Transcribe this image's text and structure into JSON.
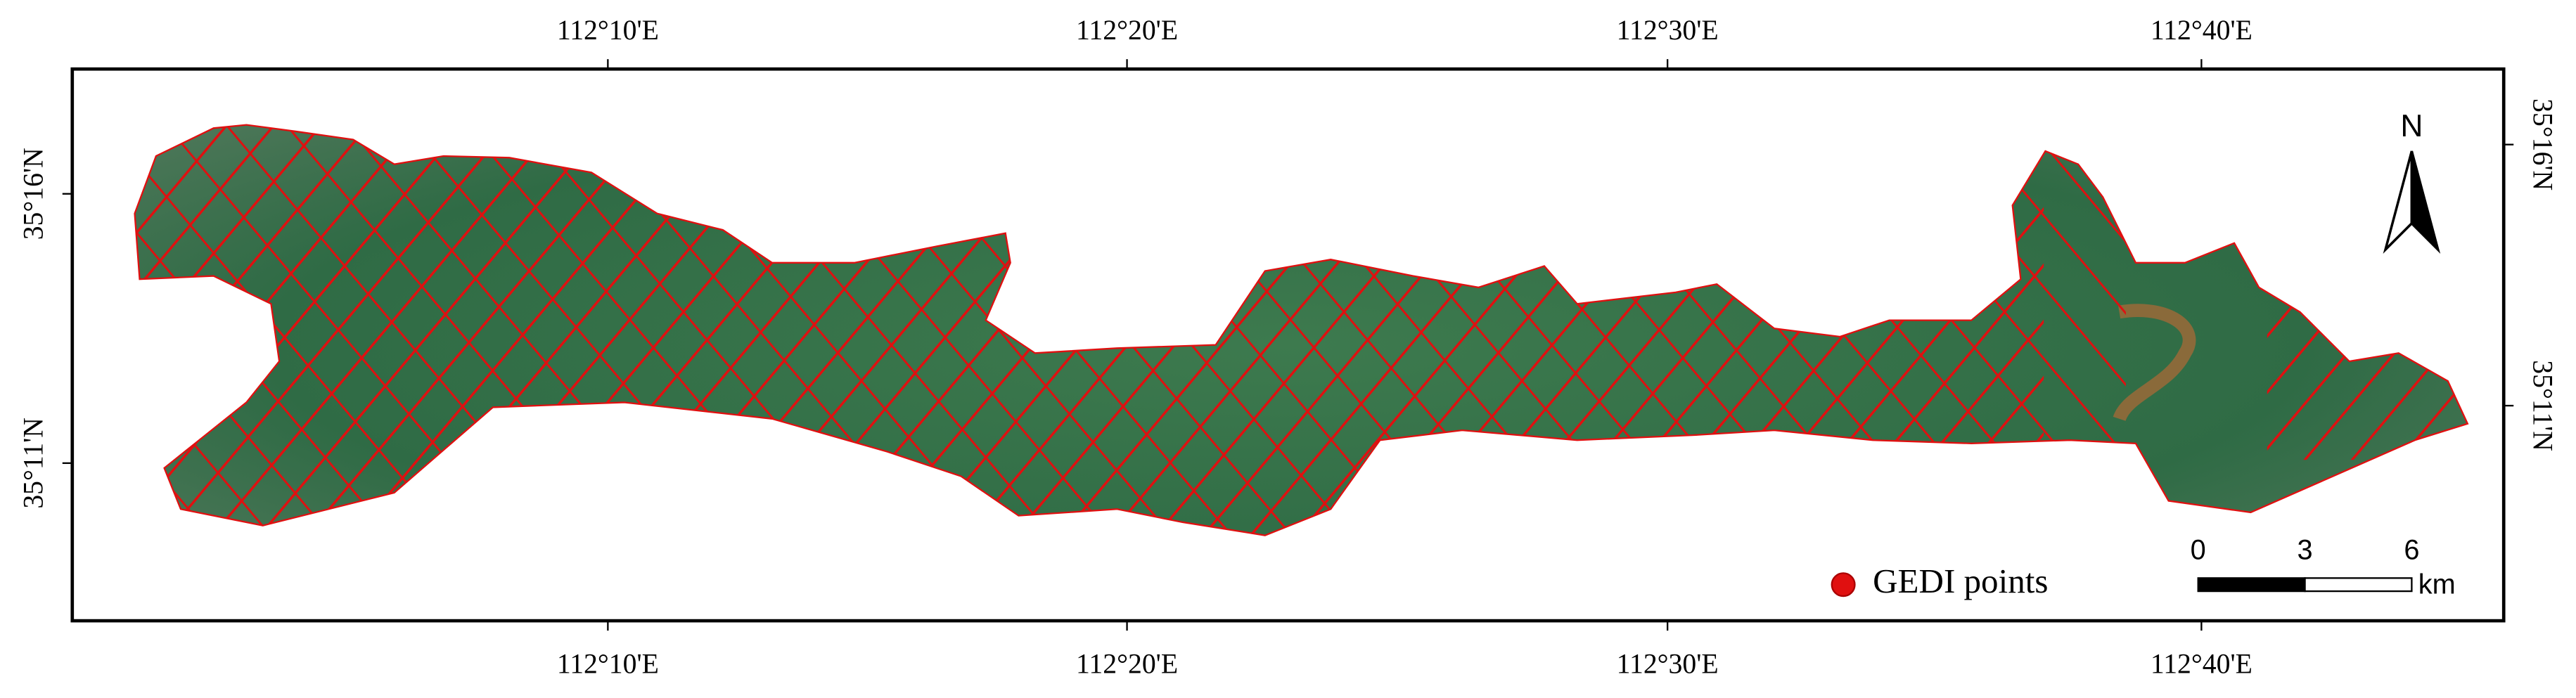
{
  "graticule": {
    "top_labels": [
      "112°10'E",
      "112°20'E",
      "112°30'E",
      "112°40'E"
    ],
    "bottom_labels": [
      "112°10'E",
      "112°20'E",
      "112°30'E",
      "112°40'E"
    ],
    "left_labels": [
      "35°16'N",
      "35°11'N"
    ],
    "right_labels": [
      "35°16'N",
      "35°11'N"
    ]
  },
  "north_arrow": "N",
  "scale_bar": {
    "ticks": [
      0,
      3,
      6
    ],
    "unit": "km"
  },
  "legend": {
    "label": "GEDI points"
  }
}
